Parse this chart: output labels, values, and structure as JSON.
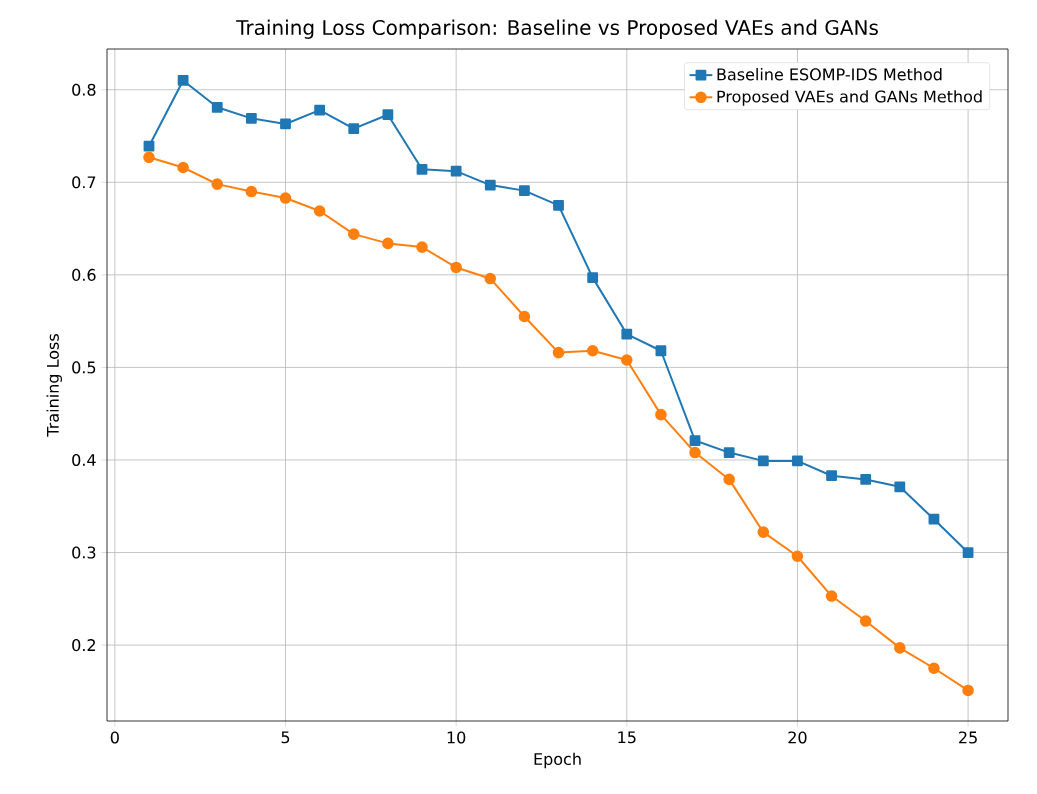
{
  "chart_data": {
    "type": "line",
    "title": "Training Loss Comparison: Baseline vs Proposed VAEs and GANs",
    "xlabel": "Epoch",
    "ylabel": "Training Loss",
    "x": [
      1,
      2,
      3,
      4,
      5,
      6,
      7,
      8,
      9,
      10,
      11,
      12,
      13,
      14,
      15,
      16,
      17,
      18,
      19,
      20,
      21,
      22,
      23,
      24,
      25
    ],
    "series": [
      {
        "name": "Baseline ESOMP-IDS Method",
        "color": "#1f77b4",
        "marker": "square",
        "values": [
          0.739,
          0.81,
          0.781,
          0.769,
          0.763,
          0.778,
          0.758,
          0.773,
          0.714,
          0.712,
          0.697,
          0.691,
          0.675,
          0.597,
          0.536,
          0.518,
          0.421,
          0.408,
          0.399,
          0.399,
          0.383,
          0.379,
          0.371,
          0.336,
          0.3
        ]
      },
      {
        "name": "Proposed VAEs and GANs Method",
        "color": "#ff7f0e",
        "marker": "circle",
        "values": [
          0.727,
          0.716,
          0.698,
          0.69,
          0.683,
          0.669,
          0.644,
          0.634,
          0.63,
          0.608,
          0.596,
          0.555,
          0.516,
          0.518,
          0.508,
          0.449,
          0.408,
          0.379,
          0.322,
          0.296,
          0.253,
          0.226,
          0.197,
          0.175,
          0.151
        ]
      }
    ],
    "xlim": [
      -0.23,
      26.17
    ],
    "ylim": [
      0.118,
      0.844
    ],
    "xticks": [
      0,
      5,
      10,
      15,
      20,
      25
    ],
    "yticks": [
      0.2,
      0.3,
      0.4,
      0.5,
      0.6,
      0.7,
      0.8
    ],
    "grid": true,
    "legend": "top right",
    "line_style": "solid"
  }
}
